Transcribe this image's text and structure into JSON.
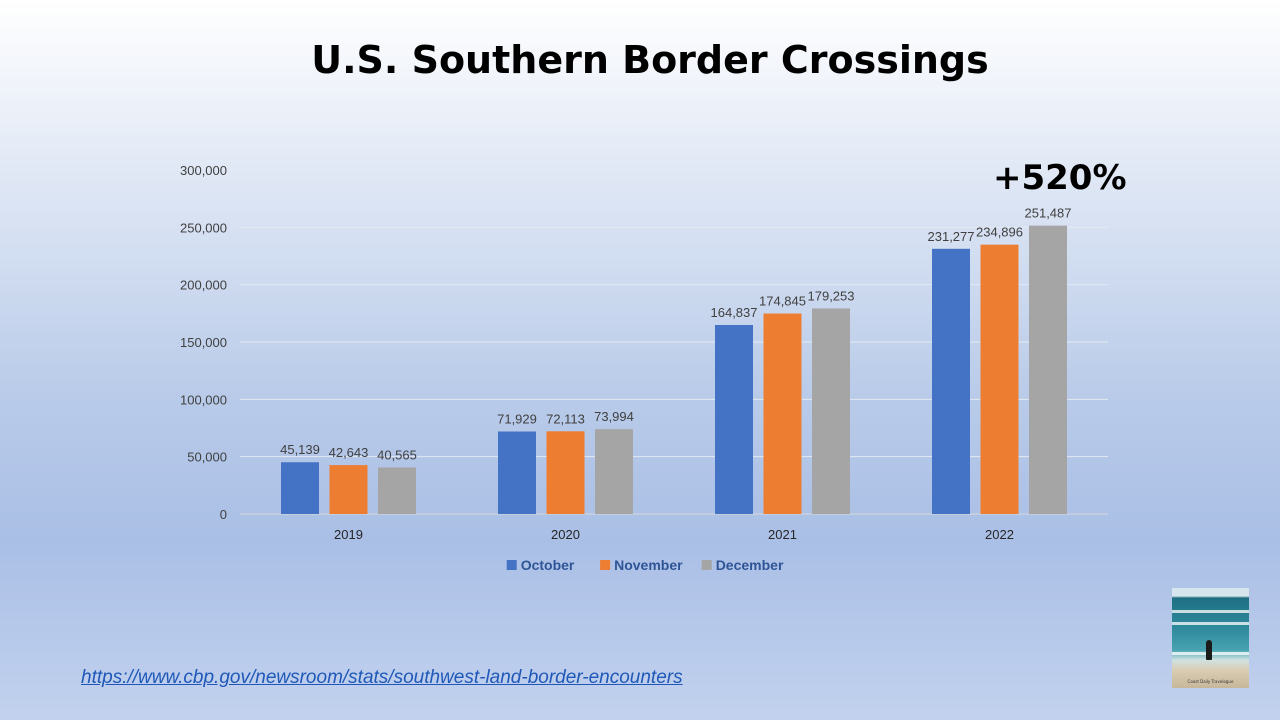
{
  "slide": {
    "title": "U.S. Southern Border Crossings",
    "callout": "+520%",
    "source_url": "https://www.cbp.gov/newsroom/stats/southwest-land-border-encounters",
    "thumbnail": {
      "icon": "beach-photo-icon",
      "caption": "Coast Daily Travelogue"
    }
  },
  "chart_data": {
    "type": "bar",
    "title": "",
    "xlabel": "",
    "ylabel": "",
    "categories": [
      "2019",
      "2020",
      "2021",
      "2022"
    ],
    "series": [
      {
        "name": "October",
        "color": "#4472c4",
        "values": [
          45139,
          71929,
          164837,
          231277
        ]
      },
      {
        "name": "November",
        "color": "#ed7d31",
        "values": [
          42643,
          72113,
          174845,
          234896
        ]
      },
      {
        "name": "December",
        "color": "#a5a5a5",
        "values": [
          40565,
          73994,
          179253,
          251487
        ]
      }
    ],
    "ylim": [
      0,
      300000
    ],
    "yticks": [
      0,
      50000,
      100000,
      150000,
      200000,
      250000,
      300000
    ],
    "grid": true,
    "legend": "bottom"
  }
}
